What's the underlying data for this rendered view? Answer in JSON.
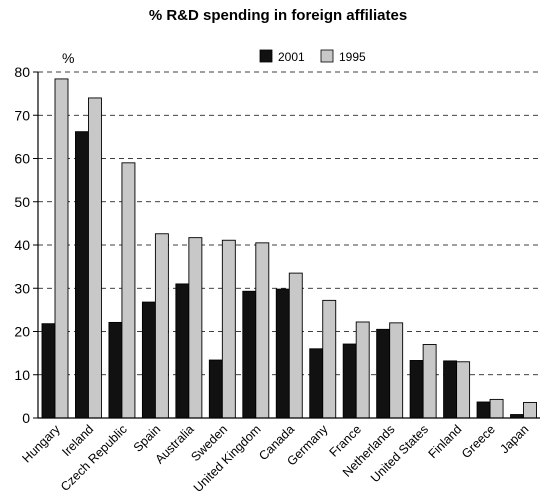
{
  "chart_data": {
    "type": "bar",
    "title": "% R&D spending in foreign affiliates",
    "unit_label": "%",
    "categories": [
      "Hungary",
      "Ireland",
      "Czech Republic",
      "Spain",
      "Australia",
      "Sweden",
      "United Kingdom",
      "Canada",
      "Germany",
      "France",
      "Netherlands",
      "United States",
      "Finland",
      "Greece",
      "Japan"
    ],
    "series": [
      {
        "name": "2001",
        "color": "#111111",
        "values": [
          21.8,
          66.2,
          22.1,
          26.8,
          31.0,
          13.4,
          29.3,
          29.8,
          16.0,
          17.1,
          20.5,
          13.3,
          13.2,
          3.7,
          0.8
        ]
      },
      {
        "name": "1995",
        "color": "#c8c8c8",
        "values": [
          78.4,
          74.0,
          59.0,
          42.6,
          41.7,
          41.1,
          40.5,
          33.5,
          27.2,
          22.2,
          22.0,
          17.0,
          13.0,
          4.3,
          3.6
        ]
      }
    ],
    "ylim": [
      0,
      80
    ],
    "yticks": [
      0,
      10,
      20,
      30,
      40,
      50,
      60,
      70,
      80
    ],
    "grid": "dashed horizontal",
    "legend_position": "top-right"
  }
}
